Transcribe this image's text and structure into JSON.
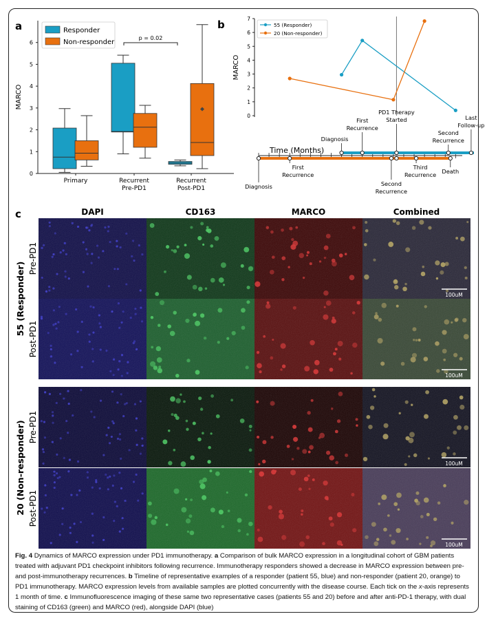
{
  "panels": {
    "a": {
      "letter": "a"
    },
    "b": {
      "letter": "b"
    },
    "c": {
      "letter": "c"
    }
  },
  "chart_data": [
    {
      "type": "box",
      "panel": "a",
      "ylabel": "MARCO",
      "ylim": [
        0,
        7
      ],
      "yticks": [
        "0",
        "1",
        "2",
        "3",
        "4",
        "5",
        "6"
      ],
      "categories": [
        "Primary",
        "Recurrent\nPre-PD1",
        "Recurrent\nPost-PD1"
      ],
      "category_lines": [
        [
          "Primary"
        ],
        [
          "Recurrent",
          "Pre-PD1"
        ],
        [
          "Recurrent",
          "Post-PD1"
        ]
      ],
      "series": [
        {
          "name": "Responder",
          "color": "#1a9ec4",
          "boxes": [
            {
              "whislo": 0.05,
              "q1": 0.22,
              "med": 0.75,
              "q3": 2.08,
              "whishi": 2.97
            },
            {
              "whislo": 0.9,
              "q1": 1.9,
              "med": 1.92,
              "q3": 5.05,
              "whishi": 5.42
            },
            {
              "whislo": 0.35,
              "q1": 0.42,
              "med": 0.48,
              "q3": 0.55,
              "whishi": 0.62
            }
          ],
          "fliers": [
            [],
            [],
            []
          ]
        },
        {
          "name": "Non-responder",
          "color": "#e8700f",
          "boxes": [
            {
              "whislo": 0.33,
              "q1": 0.62,
              "med": 0.93,
              "q3": 1.5,
              "whishi": 2.65
            },
            {
              "whislo": 0.7,
              "q1": 1.2,
              "med": 2.12,
              "q3": 2.75,
              "whishi": 3.12
            },
            {
              "whislo": 0.22,
              "q1": 0.82,
              "med": 1.42,
              "q3": 4.12,
              "whishi": 6.82
            }
          ],
          "fliers": [
            [],
            [],
            [
              2.95
            ]
          ]
        }
      ],
      "legend": "top-left",
      "annotation": "p = 0.02"
    },
    {
      "type": "line",
      "panel": "b",
      "ylabel": "MARCO",
      "ylim": [
        0,
        7
      ],
      "yticks": [
        "0",
        "1",
        "2",
        "3",
        "4",
        "5",
        "6",
        "7"
      ],
      "x_unit": "months",
      "series": [
        {
          "name": "55 (Responder)",
          "color": "#1a9ec4",
          "x": [
            8,
            10,
            19
          ],
          "y": [
            2.95,
            5.42,
            0.38
          ]
        },
        {
          "name": "20 (Non-responder)",
          "color": "#e8700f",
          "x": [
            3,
            13,
            16
          ],
          "y": [
            2.68,
            1.15,
            6.82
          ]
        }
      ],
      "therapy_line_x": 13.3,
      "legend": "top-left"
    }
  ],
  "timeline": {
    "axis_label": "Time (Months)",
    "responder_events": [
      {
        "month": 8,
        "label": "Diagnosis"
      },
      {
        "month": 10,
        "label": "First\nRecurrence"
      },
      {
        "month": 13.3,
        "label": "PD1 Therapy\nStarted"
      },
      {
        "month": 18.3,
        "label": "Second\nRecurrence"
      },
      {
        "month": 20.5,
        "label": "Last\nFollow-up"
      }
    ],
    "nonresponder_events": [
      {
        "month": 0,
        "label": "Diagnosis"
      },
      {
        "month": 3,
        "label": "First\nRecurrence"
      },
      {
        "month": 12.8,
        "label": "Second\nRecurrence"
      },
      {
        "month": 13.3,
        "label": ""
      },
      {
        "month": 15.2,
        "label": "Third\nRecurrence"
      },
      {
        "month": 18.5,
        "label": "Death"
      }
    ]
  },
  "panel_c": {
    "column_headers": [
      "DAPI",
      "CD163",
      "MARCO",
      "Combined"
    ],
    "groups": [
      {
        "label": "55 (Responder)",
        "rows": [
          "Pre-PD1",
          "Post-PD1"
        ]
      },
      {
        "label": "20 (Non-responder)",
        "rows": [
          "Pre-PD1",
          "Post-PD1"
        ]
      }
    ],
    "scalebar": "100uM"
  },
  "caption": {
    "fig_label": "Fig. 4",
    "title": "Dynamics of MARCO expression under PD1 immunotherapy.",
    "a_letter": "a",
    "a_text": "Comparison of bulk MARCO expression in a longitudinal cohort of GBM patients treated with adjuvant PD1 checkpoint inhibitors following recurrence. Immunotherapy responders showed a decrease in MARCO expression between pre- and post-immunotherapy recurrences.",
    "b_letter": "b",
    "b_text": "Timeline of representative examples of a responder (patient 55, blue) and non-responder (patient 20, orange) to PD1 immunotherapy. MARCO expression levels from available samples are plotted concurrently with the disease course. Each tick on the",
    "b_italic": "x",
    "b_text2": "-axis represents 1 month of time.",
    "c_letter": "c",
    "c_text": "Immunofluorescence imaging of these same two representative cases (patients 55 and 20) before and after anti-PD-1 therapy, with dual staining of CD163 (green) and MARCO (red), alongside DAPI (blue)"
  }
}
